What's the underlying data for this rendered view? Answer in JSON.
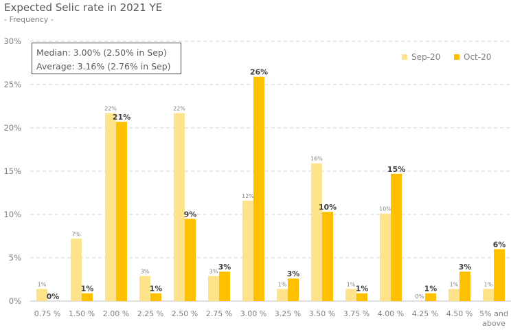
{
  "chart_data": {
    "type": "bar",
    "title": "Expected Selic rate in 2021 YE",
    "subtitle": "- Frequency -",
    "categories": [
      "0.75 %",
      "1.50 %",
      "2.00 %",
      "2.25 %",
      "2.50 %",
      "2.75 %",
      "3.00 %",
      "3.25 %",
      "3.50 %",
      "3.75 %",
      "4.00 %",
      "4.25 %",
      "4.50 %",
      "5% and above"
    ],
    "series": [
      {
        "name": "Sep-20",
        "color": "#FFE38A",
        "values": [
          1.4,
          7.2,
          21.7,
          2.9,
          21.7,
          2.9,
          11.6,
          1.4,
          15.9,
          1.4,
          10.1,
          0.0,
          1.4,
          1.4
        ],
        "labels": [
          "1%",
          "7%",
          "22%",
          "3%",
          "22%",
          "3%",
          "12%",
          "1%",
          "16%",
          "1%",
          "10%",
          "0%",
          "1%",
          "1%"
        ]
      },
      {
        "name": "Oct-20",
        "color": "#FFC000",
        "values": [
          0.0,
          0.9,
          20.7,
          0.9,
          9.5,
          3.4,
          25.9,
          2.6,
          10.3,
          0.9,
          14.7,
          0.9,
          3.4,
          6.0
        ],
        "labels": [
          "0%",
          "1%",
          "21%",
          "1%",
          "9%",
          "3%",
          "26%",
          "3%",
          "10%",
          "1%",
          "15%",
          "1%",
          "3%",
          "6%"
        ]
      }
    ],
    "yticks": [
      "0%",
      "5%",
      "10%",
      "15%",
      "20%",
      "25%",
      "30%"
    ],
    "ylim": [
      0,
      30
    ],
    "grid": true,
    "legend_position": "top-right",
    "annotation": [
      "Median: 3.00% (2.50% in Sep)",
      "Average: 3.16% (2.76% in Sep)"
    ]
  }
}
